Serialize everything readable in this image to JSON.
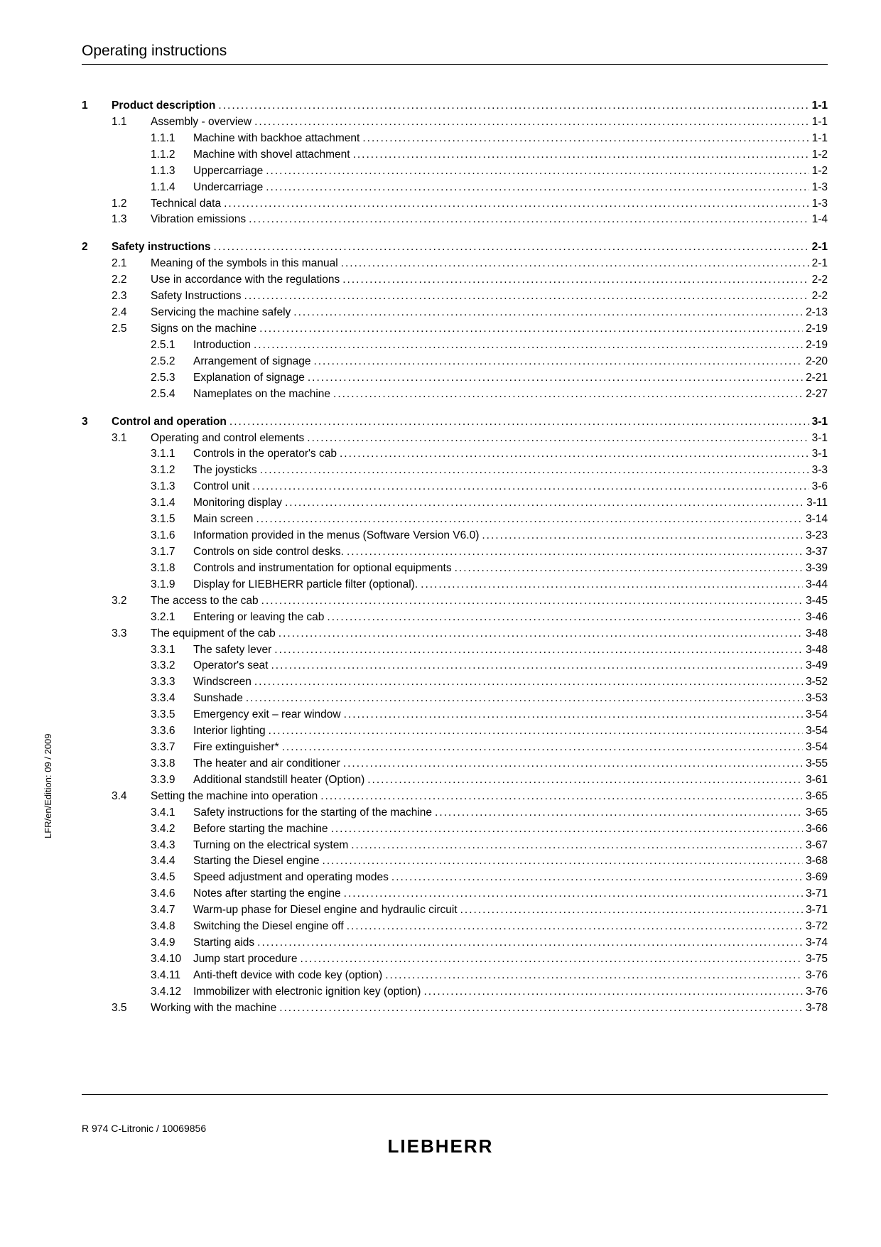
{
  "header": {
    "title": "Operating instructions"
  },
  "side_label": "LFR/en/Edition: 09 / 2009",
  "footer": {
    "doc_ref": "R 974 C-Litronic / 10069856",
    "brand": "LIEBHERR"
  },
  "toc": [
    {
      "num": "1",
      "title": "Product description",
      "page": "1-1",
      "sections": [
        {
          "num": "1.1",
          "title": "Assembly - overview",
          "page": "1-1",
          "subs": [
            {
              "num": "1.1.1",
              "title": "Machine with backhoe attachment",
              "page": "1-1"
            },
            {
              "num": "1.1.2",
              "title": "Machine with shovel attachment",
              "page": "1-2"
            },
            {
              "num": "1.1.3",
              "title": "Uppercarriage",
              "page": "1-2"
            },
            {
              "num": "1.1.4",
              "title": "Undercarriage",
              "page": "1-3"
            }
          ]
        },
        {
          "num": "1.2",
          "title": "Technical data",
          "page": "1-3",
          "subs": []
        },
        {
          "num": "1.3",
          "title": "Vibration emissions",
          "page": "1-4",
          "subs": []
        }
      ]
    },
    {
      "num": "2",
      "title": "Safety instructions",
      "page": "2-1",
      "sections": [
        {
          "num": "2.1",
          "title": "Meaning of the symbols in this manual",
          "page": "2-1",
          "subs": []
        },
        {
          "num": "2.2",
          "title": "Use in accordance with the regulations",
          "page": "2-2",
          "subs": []
        },
        {
          "num": "2.3",
          "title": "Safety Instructions",
          "page": "2-2",
          "subs": []
        },
        {
          "num": "2.4",
          "title": "Servicing the machine safely",
          "page": "2-13",
          "subs": []
        },
        {
          "num": "2.5",
          "title": "Signs on the machine",
          "page": "2-19",
          "subs": [
            {
              "num": "2.5.1",
              "title": "Introduction",
              "page": "2-19"
            },
            {
              "num": "2.5.2",
              "title": "Arrangement of signage",
              "page": "2-20"
            },
            {
              "num": "2.5.3",
              "title": "Explanation of signage",
              "page": "2-21"
            },
            {
              "num": "2.5.4",
              "title": "Nameplates on the machine",
              "page": "2-27"
            }
          ]
        }
      ]
    },
    {
      "num": "3",
      "title": "Control and operation",
      "page": "3-1",
      "sections": [
        {
          "num": "3.1",
          "title": "Operating and control elements",
          "page": "3-1",
          "subs": [
            {
              "num": "3.1.1",
              "title": "Controls in the operator's cab",
              "page": "3-1"
            },
            {
              "num": "3.1.2",
              "title": "The joysticks",
              "page": "3-3"
            },
            {
              "num": "3.1.3",
              "title": "Control unit",
              "page": "3-6"
            },
            {
              "num": "3.1.4",
              "title": "Monitoring display",
              "page": "3-11"
            },
            {
              "num": "3.1.5",
              "title": "Main screen",
              "page": "3-14"
            },
            {
              "num": "3.1.6",
              "title": "Information provided in the menus (Software Version V6.0)",
              "page": "3-23"
            },
            {
              "num": "3.1.7",
              "title": "Controls on side control desks.",
              "page": "3-37"
            },
            {
              "num": "3.1.8",
              "title": "Controls and instrumentation for optional equipments",
              "page": "3-39"
            },
            {
              "num": "3.1.9",
              "title": "Display for LIEBHERR particle filter (optional).",
              "page": "3-44"
            }
          ]
        },
        {
          "num": "3.2",
          "title": "The access to the cab",
          "page": "3-45",
          "subs": [
            {
              "num": "3.2.1",
              "title": "Entering or leaving the cab",
              "page": "3-46"
            }
          ]
        },
        {
          "num": "3.3",
          "title": "The equipment of the cab",
          "page": "3-48",
          "subs": [
            {
              "num": "3.3.1",
              "title": "The safety lever",
              "page": "3-48"
            },
            {
              "num": "3.3.2",
              "title": "Operator's seat",
              "page": "3-49"
            },
            {
              "num": "3.3.3",
              "title": "Windscreen",
              "page": "3-52"
            },
            {
              "num": "3.3.4",
              "title": "Sunshade",
              "page": "3-53"
            },
            {
              "num": "3.3.5",
              "title": "Emergency exit – rear window",
              "page": "3-54"
            },
            {
              "num": "3.3.6",
              "title": "Interior lighting",
              "page": "3-54"
            },
            {
              "num": "3.3.7",
              "title": "Fire extinguisher*",
              "page": "3-54"
            },
            {
              "num": "3.3.8",
              "title": "The heater and air conditioner",
              "page": "3-55"
            },
            {
              "num": "3.3.9",
              "title": "Additional standstill heater (Option)",
              "page": "3-61"
            }
          ]
        },
        {
          "num": "3.4",
          "title": "Setting the machine into operation",
          "page": "3-65",
          "subs": [
            {
              "num": "3.4.1",
              "title": "Safety instructions for the starting of the machine",
              "page": "3-65"
            },
            {
              "num": "3.4.2",
              "title": "Before starting the machine",
              "page": "3-66"
            },
            {
              "num": "3.4.3",
              "title": "Turning on the electrical system",
              "page": "3-67"
            },
            {
              "num": "3.4.4",
              "title": "Starting the Diesel engine",
              "page": "3-68"
            },
            {
              "num": "3.4.5",
              "title": "Speed adjustment and operating modes",
              "page": "3-69"
            },
            {
              "num": "3.4.6",
              "title": "Notes after starting the engine",
              "page": "3-71"
            },
            {
              "num": "3.4.7",
              "title": "Warm-up phase for Diesel engine and hydraulic circuit",
              "page": "3-71"
            },
            {
              "num": "3.4.8",
              "title": "Switching the Diesel engine off",
              "page": "3-72"
            },
            {
              "num": "3.4.9",
              "title": "Starting aids",
              "page": "3-74"
            },
            {
              "num": "3.4.10",
              "title": "Jump start procedure",
              "page": "3-75"
            },
            {
              "num": "3.4.11",
              "title": "Anti-theft device with code key (option)",
              "page": "3-76"
            },
            {
              "num": "3.4.12",
              "title": "Immobilizer with electronic ignition key (option)",
              "page": "3-76"
            }
          ]
        },
        {
          "num": "3.5",
          "title": "Working with the machine",
          "page": "3-78",
          "subs": []
        }
      ]
    }
  ]
}
